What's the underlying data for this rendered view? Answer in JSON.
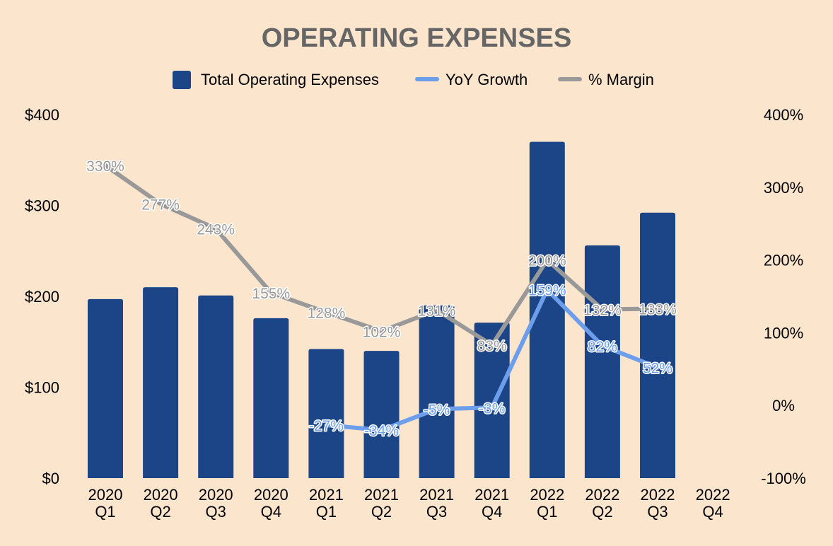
{
  "chart_data": {
    "type": "bar",
    "title": "OPERATING EXPENSES",
    "categories": [
      [
        "2020",
        "Q1"
      ],
      [
        "2020",
        "Q2"
      ],
      [
        "2020",
        "Q3"
      ],
      [
        "2020",
        "Q4"
      ],
      [
        "2021",
        "Q1"
      ],
      [
        "2021",
        "Q2"
      ],
      [
        "2021",
        "Q3"
      ],
      [
        "2021",
        "Q4"
      ],
      [
        "2022",
        "Q1"
      ],
      [
        "2022",
        "Q2"
      ],
      [
        "2022",
        "Q3"
      ],
      [
        "2022",
        "Q4"
      ]
    ],
    "y_left": {
      "ticks": [
        "$0",
        "$100",
        "$200",
        "$300",
        "$400"
      ],
      "range": [
        0,
        400
      ]
    },
    "y_right": {
      "ticks": [
        "-100%",
        "0%",
        "100%",
        "200%",
        "300%",
        "400%"
      ],
      "range": [
        -100,
        400
      ]
    },
    "legend_position": "top",
    "series": [
      {
        "name": "Total Operating Expenses",
        "type": "bar",
        "axis": "left",
        "color": "#1c4587",
        "values": [
          197,
          210,
          201,
          176,
          142,
          140,
          190,
          171,
          370,
          256,
          292,
          null
        ]
      },
      {
        "name": "YoY Growth",
        "type": "line",
        "axis": "right",
        "color": "#6d9eeb",
        "values": [
          null,
          null,
          null,
          null,
          -27,
          -34,
          -5,
          -3,
          159,
          82,
          52,
          null
        ],
        "labels": [
          "",
          "",
          "",
          "",
          "-27%",
          "-34%",
          "-5%",
          "-3%",
          "159%",
          "82%",
          "52%",
          ""
        ]
      },
      {
        "name": "% Margin",
        "type": "line",
        "axis": "right",
        "color": "#999999",
        "values": [
          330,
          277,
          243,
          155,
          128,
          102,
          131,
          83,
          200,
          132,
          133,
          null
        ],
        "labels": [
          "330%",
          "277%",
          "243%",
          "155%",
          "128%",
          "102%",
          "131%",
          "83%",
          "200%",
          "132%",
          "133%",
          ""
        ]
      }
    ],
    "colors": {
      "title": "#666666",
      "background": "#fce5cd"
    }
  }
}
